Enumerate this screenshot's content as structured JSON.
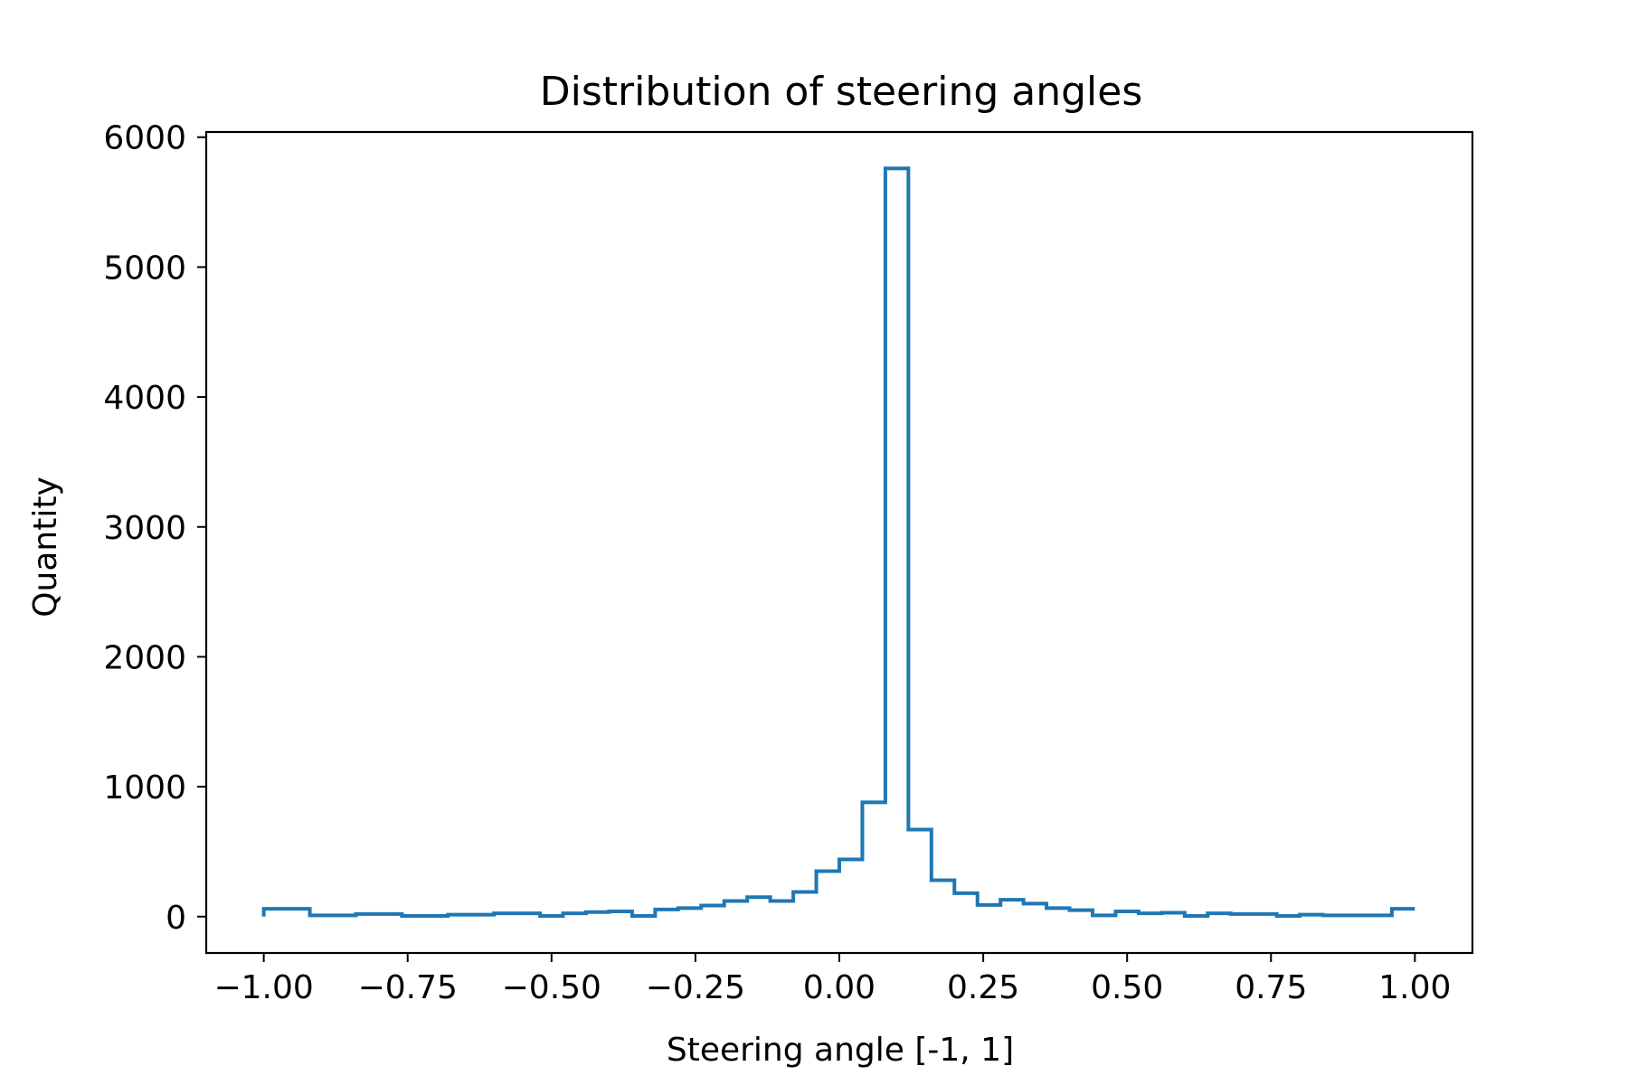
{
  "chart_data": {
    "type": "histogram",
    "title": "Distribution of steering angles",
    "xlabel": "Steering angle [-1, 1]",
    "ylabel": "Quantity",
    "xlim": [
      -1.1,
      1.1
    ],
    "ylim": [
      -280,
      6040
    ],
    "xticks": [
      -1.0,
      -0.75,
      -0.5,
      -0.25,
      0.0,
      0.25,
      0.5,
      0.75,
      1.0
    ],
    "xtick_labels": [
      "−1.00",
      "−0.75",
      "−0.50",
      "−0.25",
      "0.00",
      "0.25",
      "0.50",
      "0.75",
      "1.00"
    ],
    "yticks": [
      0,
      1000,
      2000,
      3000,
      4000,
      5000,
      6000
    ],
    "ytick_labels": [
      "0",
      "1000",
      "2000",
      "3000",
      "4000",
      "5000",
      "6000"
    ],
    "grid": false,
    "line_color": "#1f77b4",
    "bins": [
      -1.0,
      -0.92,
      -0.84,
      -0.76,
      -0.68,
      -0.6,
      -0.52,
      -0.48,
      -0.44,
      -0.4,
      -0.36,
      -0.32,
      -0.28,
      -0.24,
      -0.2,
      -0.16,
      -0.12,
      -0.08,
      -0.04,
      0.0,
      0.04,
      0.08,
      0.12,
      0.16,
      0.2,
      0.24,
      0.28,
      0.32,
      0.36,
      0.4,
      0.44,
      0.48,
      0.52,
      0.56,
      0.6,
      0.64,
      0.68,
      0.72,
      0.76,
      0.8,
      0.84,
      0.88,
      0.92,
      0.96,
      1.0
    ],
    "counts": [
      60,
      10,
      20,
      5,
      15,
      25,
      5,
      25,
      35,
      40,
      5,
      55,
      65,
      85,
      120,
      150,
      120,
      190,
      350,
      440,
      880,
      5760,
      670,
      280,
      180,
      90,
      130,
      100,
      65,
      50,
      10,
      40,
      25,
      30,
      5,
      25,
      20,
      20,
      5,
      15,
      10,
      10,
      10,
      60
    ],
    "bin_edges_note": ""
  }
}
